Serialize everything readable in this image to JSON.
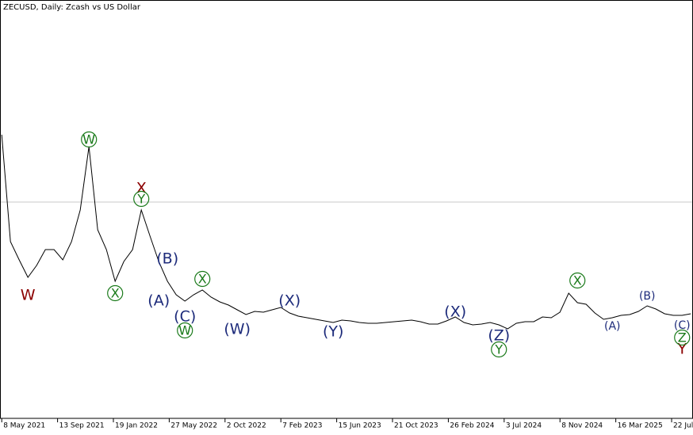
{
  "chart_data": {
    "type": "line",
    "title": "ZECUSD, Daily:  Zcash vs US Dollar",
    "x": [
      "2021-05-08",
      "2021-05-28",
      "2021-06-17",
      "2021-07-07",
      "2021-07-27",
      "2021-08-16",
      "2021-09-05",
      "2021-09-25",
      "2021-10-15",
      "2021-11-04",
      "2021-11-24",
      "2021-12-14",
      "2022-01-03",
      "2022-01-23",
      "2022-02-12",
      "2022-03-04",
      "2022-03-24",
      "2022-04-13",
      "2022-05-03",
      "2022-05-23",
      "2022-06-12",
      "2022-07-02",
      "2022-07-22",
      "2022-08-11",
      "2022-08-31",
      "2022-09-20",
      "2022-10-10",
      "2022-10-30",
      "2022-11-19",
      "2022-12-09",
      "2022-12-29",
      "2023-01-18",
      "2023-02-07",
      "2023-02-27",
      "2023-03-19",
      "2023-04-08",
      "2023-04-28",
      "2023-05-18",
      "2023-06-07",
      "2023-06-27",
      "2023-07-17",
      "2023-08-06",
      "2023-08-26",
      "2023-09-15",
      "2023-10-05",
      "2023-10-25",
      "2023-11-14",
      "2023-12-04",
      "2023-12-24",
      "2024-01-13",
      "2024-02-02",
      "2024-02-22",
      "2024-03-13",
      "2024-04-02",
      "2024-04-22",
      "2024-05-12",
      "2024-06-01",
      "2024-06-21",
      "2024-07-11",
      "2024-07-31",
      "2024-08-20",
      "2024-09-09",
      "2024-09-29",
      "2024-10-19",
      "2024-11-08",
      "2024-11-28",
      "2024-12-18",
      "2025-01-07",
      "2025-01-27",
      "2025-02-16",
      "2025-03-08",
      "2025-03-28",
      "2025-04-17",
      "2025-05-07",
      "2025-05-27",
      "2025-06-16",
      "2025-07-06",
      "2025-07-26",
      "2025-08-15",
      "2025-09-04"
    ],
    "series": [
      {
        "name": "ZECUSD",
        "color": "#000000",
        "values": [
          358,
          223,
          200,
          178,
          193,
          213,
          213,
          200,
          223,
          263,
          343,
          238,
          213,
          173,
          198,
          213,
          263,
          230,
          198,
          173,
          156,
          148,
          156,
          162,
          153,
          147,
          143,
          137,
          131,
          135,
          134,
          137,
          140,
          133,
          129,
          127,
          125,
          123,
          121,
          124,
          123,
          121,
          120,
          120,
          121,
          122,
          123,
          124,
          122,
          119,
          119,
          123,
          128,
          121,
          118,
          119,
          121,
          118,
          113,
          120,
          122,
          122,
          128,
          127,
          134,
          158,
          146,
          144,
          133,
          125,
          127,
          130,
          131,
          135,
          142,
          138,
          132,
          130,
          130,
          132
        ]
      }
    ],
    "xlim": [
      "2021-05-04",
      "2025-09-09"
    ],
    "ylim": [
      0,
      528
    ],
    "xticks": [
      {
        "value": "2021-05-08",
        "label": "8 May 2021"
      },
      {
        "value": "2021-09-13",
        "label": "13 Sep 2021"
      },
      {
        "value": "2022-01-19",
        "label": "19 Jan 2022"
      },
      {
        "value": "2022-05-27",
        "label": "27 May 2022"
      },
      {
        "value": "2022-10-02",
        "label": "2 Oct 2022"
      },
      {
        "value": "2023-02-07",
        "label": "7 Feb 2023"
      },
      {
        "value": "2023-06-15",
        "label": "15 Jun 2023"
      },
      {
        "value": "2023-10-21",
        "label": "21 Oct 2023"
      },
      {
        "value": "2024-02-26",
        "label": "26 Feb 2024"
      },
      {
        "value": "2024-07-03",
        "label": "3 Jul 2024"
      },
      {
        "value": "2024-11-08",
        "label": "8 Nov 2024"
      },
      {
        "value": "2025-03-16",
        "label": "16 Mar 2025"
      },
      {
        "value": "2025-07-22",
        "label": "22 Jul 2025"
      }
    ],
    "horizontal_line": {
      "value": 273,
      "color": "#c8c8c8"
    },
    "annotations": [
      {
        "text": "W",
        "x": "2021-07-07",
        "y": 156,
        "style": "plain",
        "color": "#8b0000"
      },
      {
        "text": "W",
        "x": "2021-11-24",
        "y": 352,
        "style": "circle",
        "color": "#1a7a1a"
      },
      {
        "text": "X",
        "x": "2022-01-23",
        "y": 158,
        "style": "circle",
        "color": "#1a7a1a"
      },
      {
        "text": "X",
        "x": "2022-03-24",
        "y": 291,
        "style": "plain",
        "color": "#8b0000"
      },
      {
        "text": "Y",
        "x": "2022-03-24",
        "y": 277,
        "style": "circle",
        "color": "#1a7a1a"
      },
      {
        "text": "(B)",
        "x": "2022-05-23",
        "y": 202,
        "style": "plain",
        "color": "#1c2a7a"
      },
      {
        "text": "(A)",
        "x": "2022-05-03",
        "y": 149,
        "style": "plain",
        "color": "#1c2a7a"
      },
      {
        "text": "(C)",
        "x": "2022-07-02",
        "y": 129,
        "style": "plain",
        "color": "#1c2a7a"
      },
      {
        "text": "W",
        "x": "2022-07-02",
        "y": 111,
        "style": "circle",
        "color": "#1a7a1a"
      },
      {
        "text": "X",
        "x": "2022-08-11",
        "y": 176,
        "style": "circle",
        "color": "#1a7a1a"
      },
      {
        "text": "(W)",
        "x": "2022-10-30",
        "y": 113,
        "style": "plain",
        "color": "#1c2a7a"
      },
      {
        "text": "(X)",
        "x": "2023-02-27",
        "y": 149,
        "style": "plain",
        "color": "#1c2a7a"
      },
      {
        "text": "(Y)",
        "x": "2023-06-07",
        "y": 110,
        "style": "plain",
        "color": "#1c2a7a"
      },
      {
        "text": "(X)",
        "x": "2024-03-13",
        "y": 135,
        "style": "plain",
        "color": "#1c2a7a"
      },
      {
        "text": "(Z)",
        "x": "2024-06-21",
        "y": 105,
        "style": "plain",
        "color": "#1c2a7a"
      },
      {
        "text": "Y",
        "x": "2024-06-21",
        "y": 87,
        "style": "circle",
        "color": "#1a7a1a"
      },
      {
        "text": "X",
        "x": "2024-12-18",
        "y": 174,
        "style": "circle",
        "color": "#1a7a1a"
      },
      {
        "text": "(A)",
        "x": "2025-03-08",
        "y": 117,
        "style": "small",
        "color": "#1c2a7a"
      },
      {
        "text": "(B)",
        "x": "2025-05-27",
        "y": 155,
        "style": "small",
        "color": "#1c2a7a"
      },
      {
        "text": "(C)",
        "x": "2025-08-15",
        "y": 118,
        "style": "small",
        "color": "#1c2a7a"
      },
      {
        "text": "Y",
        "x": "2025-08-15",
        "y": 88,
        "style": "plain",
        "color": "#8b0000"
      },
      {
        "text": "Z",
        "x": "2025-08-15",
        "y": 102,
        "style": "circle",
        "color": "#1a7a1a"
      }
    ]
  }
}
